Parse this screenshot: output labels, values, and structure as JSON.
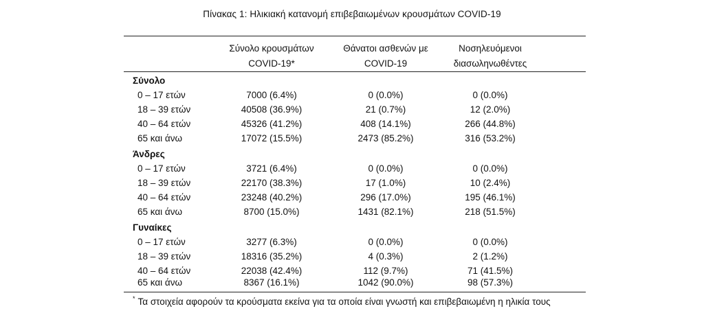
{
  "caption": "Πίνακας 1: Ηλικιακή κατανομή επιβεβαιωμένων κρουσμάτων COVID-19",
  "columns": [
    {
      "line1": "Σύνολο κρουσμάτων",
      "line2": "COVID-19*"
    },
    {
      "line1": "Θάνατοι ασθενών με",
      "line2": "COVID-19"
    },
    {
      "line1": "Νοσηλευόμενοι",
      "line2": "διασωληνωθέντες"
    }
  ],
  "groups": [
    {
      "label": "Σύνολο",
      "rows": [
        {
          "age": "0 – 17 ετών",
          "cases": "7000 (6.4%)",
          "deaths": "0 (0.0%)",
          "intubated": "0 (0.0%)"
        },
        {
          "age": "18 – 39 ετών",
          "cases": "40508 (36.9%)",
          "deaths": "21 (0.7%)",
          "intubated": "12 (2.0%)"
        },
        {
          "age": "40 – 64 ετών",
          "cases": "45326 (41.2%)",
          "deaths": "408 (14.1%)",
          "intubated": "266 (44.8%)"
        },
        {
          "age": "65 και άνω",
          "cases": "17072 (15.5%)",
          "deaths": "2473 (85.2%)",
          "intubated": "316 (53.2%)"
        }
      ]
    },
    {
      "label": "Άνδρες",
      "rows": [
        {
          "age": "0 – 17 ετών",
          "cases": "3721 (6.4%)",
          "deaths": "0 (0.0%)",
          "intubated": "0 (0.0%)"
        },
        {
          "age": "18 – 39 ετών",
          "cases": "22170 (38.3%)",
          "deaths": "17 (1.0%)",
          "intubated": "10 (2.4%)"
        },
        {
          "age": "40 – 64 ετών",
          "cases": "23248 (40.2%)",
          "deaths": "296 (17.0%)",
          "intubated": "195 (46.1%)"
        },
        {
          "age": "65 και άνω",
          "cases": "8700 (15.0%)",
          "deaths": "1431 (82.1%)",
          "intubated": "218 (51.5%)"
        }
      ]
    },
    {
      "label": "Γυναίκες",
      "rows": [
        {
          "age": "0 – 17 ετών",
          "cases": "3277 (6.3%)",
          "deaths": "0 (0.0%)",
          "intubated": "0 (0.0%)"
        },
        {
          "age": "18 – 39 ετών",
          "cases": "18316 (35.2%)",
          "deaths": "4 (0.3%)",
          "intubated": "2 (1.2%)"
        },
        {
          "age": "40 – 64 ετών",
          "cases": "22038 (42.4%)",
          "deaths": "112 (9.7%)",
          "intubated": "71 (41.5%)"
        },
        {
          "age": "65 και άνω",
          "cases": "8367 (16.1%)",
          "deaths": "1042 (90.0%)",
          "intubated": "98 (57.3%)"
        }
      ]
    }
  ],
  "footnote": {
    "mark": "*",
    "text": "Τα στοιχεία αφορούν τα κρούσματα εκείνα για τα οποία είναι γνωστή και επιβεβαιωμένη η ηλικία τους"
  }
}
